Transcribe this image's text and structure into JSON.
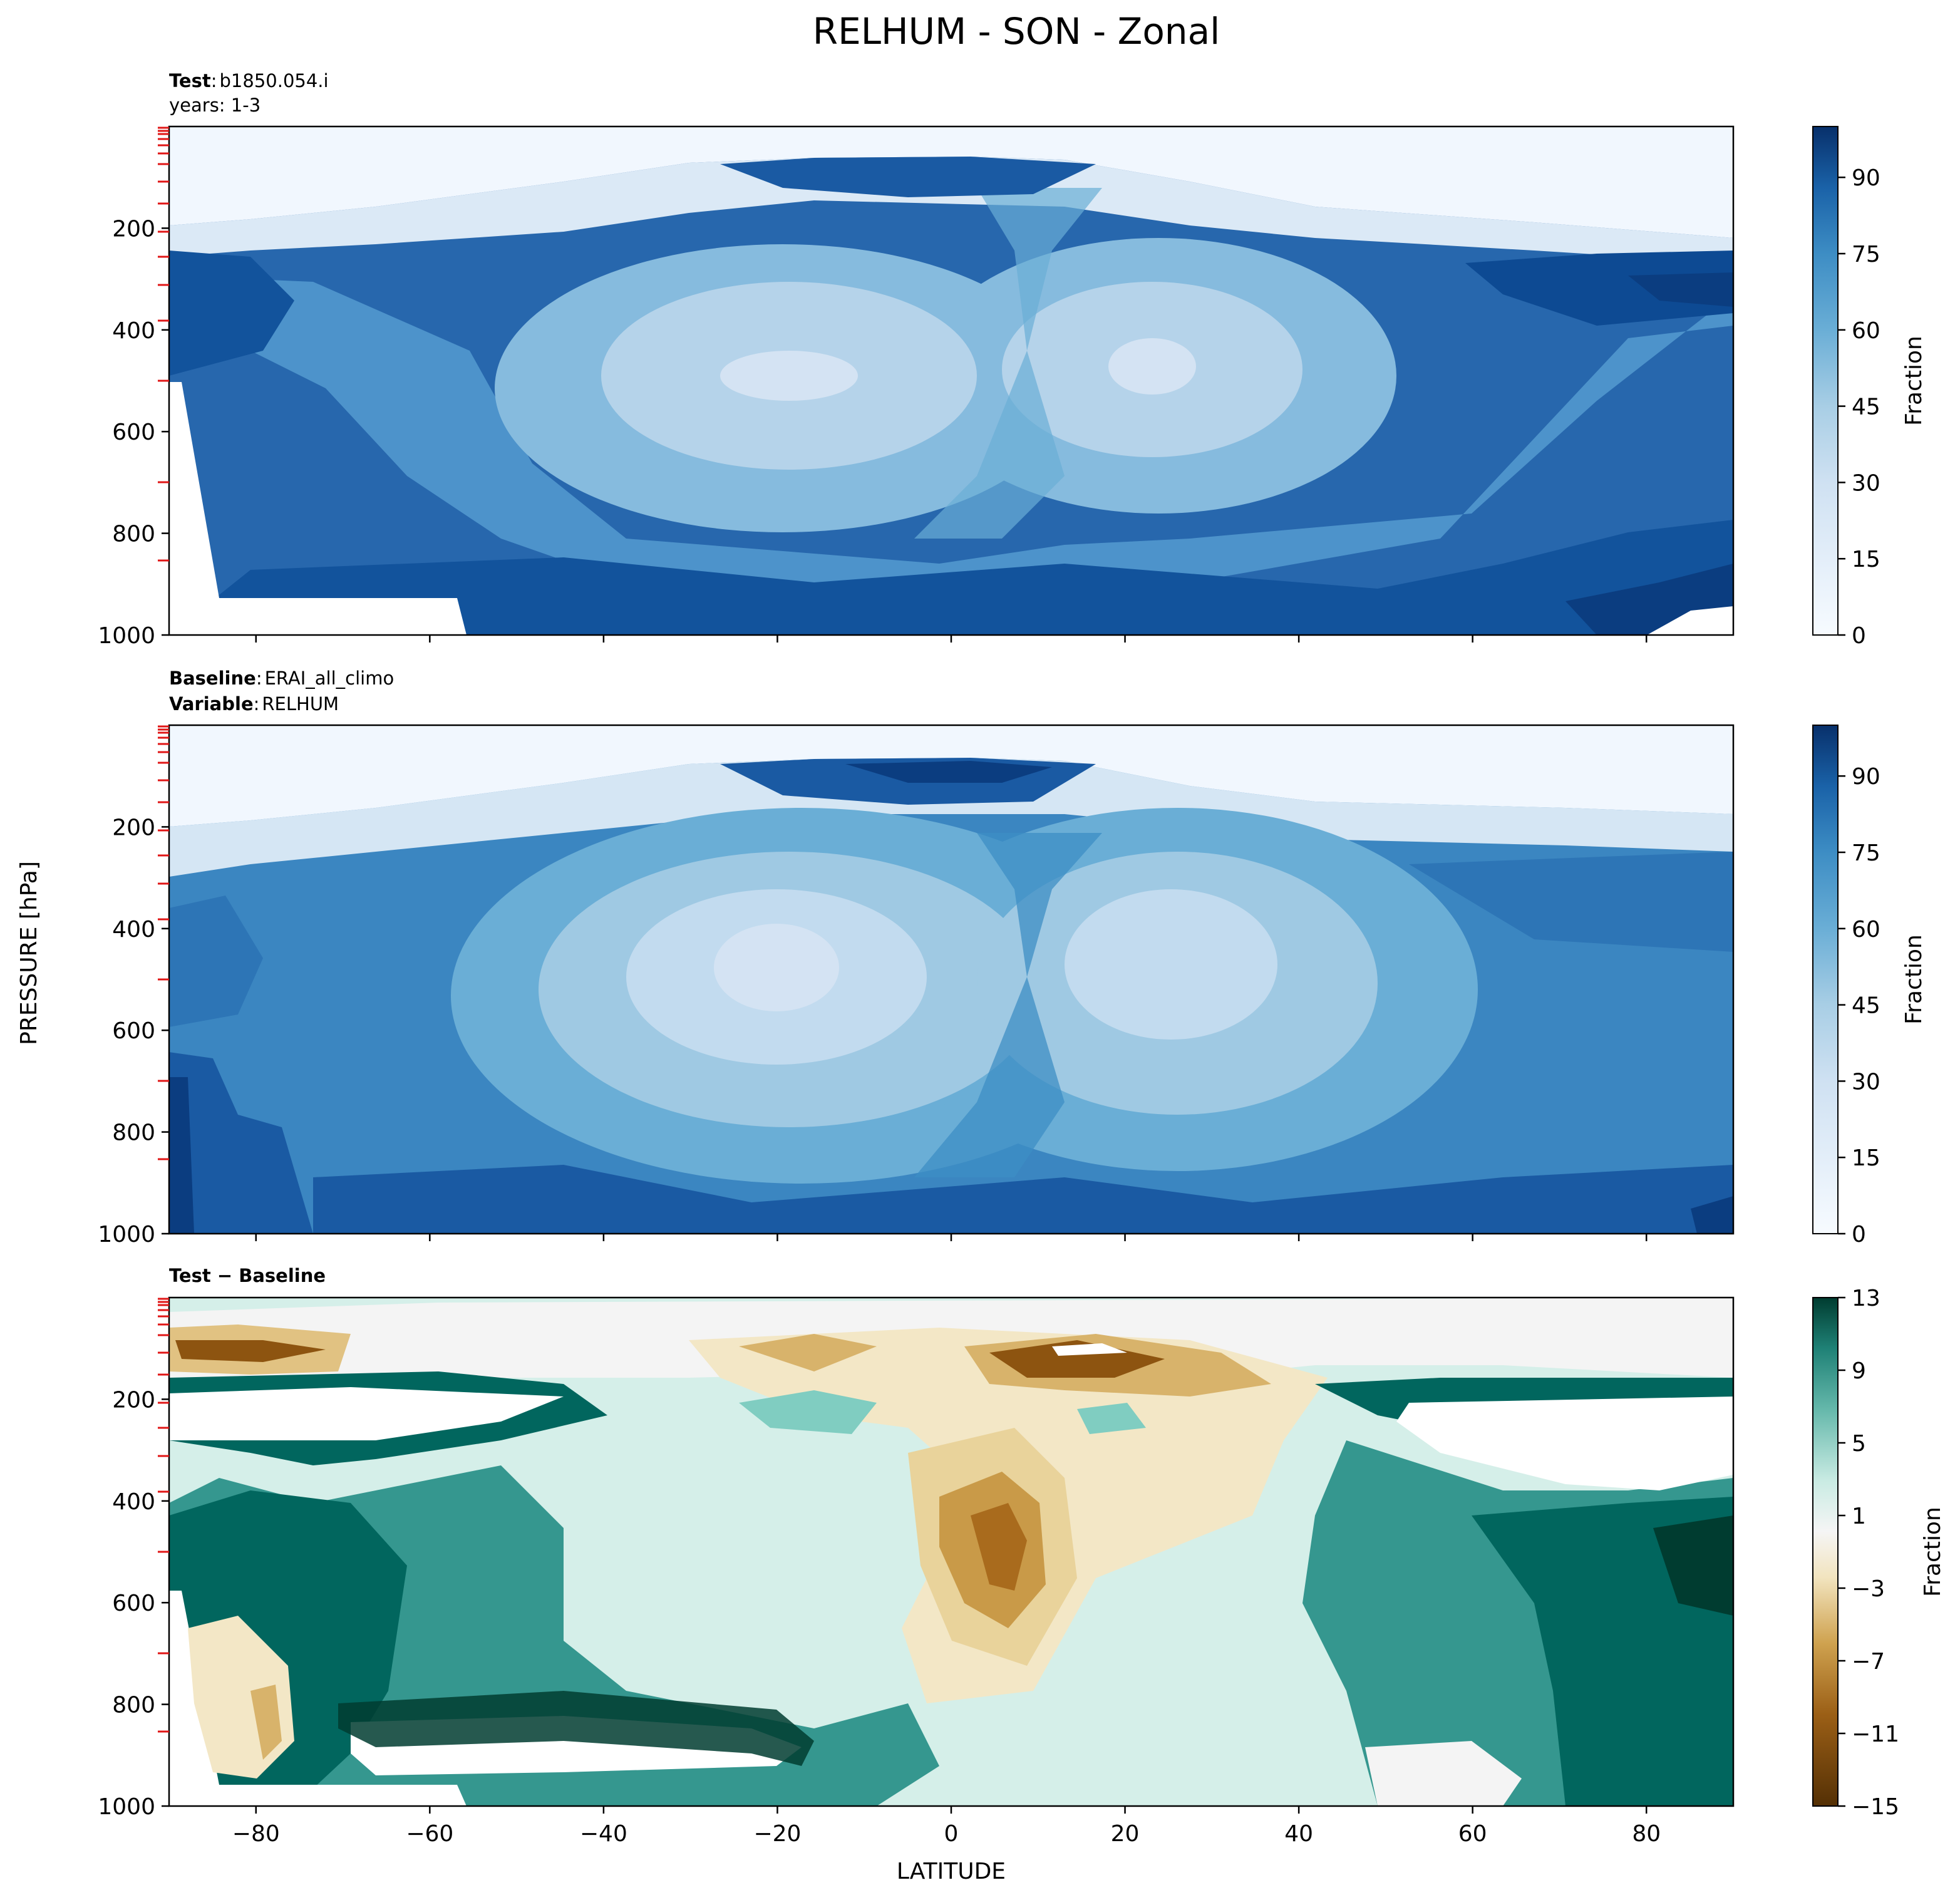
{
  "figure": {
    "title": "RELHUM - SON - Zonal",
    "xlabel": "LATITUDE",
    "ylabel": "PRESSURE [hPa]"
  },
  "panels": [
    {
      "header_lines": [
        {
          "bold": "Test",
          "sep": ":",
          "text": "b1850.054.i"
        },
        {
          "bold": "",
          "sep": "",
          "text": "years: 1-3"
        }
      ],
      "colorbar_label": "Fraction"
    },
    {
      "header_lines": [
        {
          "bold": "Baseline",
          "sep": ":",
          "text": "ERAI_all_climo"
        },
        {
          "bold": "Variable",
          "sep": ":",
          "text": "RELHUM"
        }
      ],
      "colorbar_label": "Fraction"
    },
    {
      "header_lines": [
        {
          "bold": "Test − Baseline",
          "sep": "",
          "text": ""
        }
      ],
      "colorbar_label": "Fraction"
    }
  ],
  "chart_data": [
    {
      "type": "heatmap",
      "subtype": "filled-contour",
      "panel": "Test",
      "case": "b1850.054.i",
      "years": "1-3",
      "x_range": [
        -90,
        90
      ],
      "x_ticks": [
        -80,
        -60,
        -40,
        -20,
        0,
        20,
        40,
        60,
        80
      ],
      "y_range": [
        1000,
        0
      ],
      "y_ticks": [
        200,
        400,
        600,
        800,
        1000
      ],
      "colormap": "Blues",
      "levels": [
        0,
        100
      ],
      "colorbar_ticks": [
        0,
        15,
        30,
        45,
        60,
        75,
        90
      ],
      "colorbar_label": "Fraction",
      "description_values": {
        "stratosphere_above_200hPa": 3,
        "tropical_tropopause_100hPa_max": 92,
        "subtropical_minima_500hPa": 22,
        "high_latitude_upper_max": 95,
        "boundary_layer_max": 90
      }
    },
    {
      "type": "heatmap",
      "subtype": "filled-contour",
      "panel": "Baseline",
      "case": "ERAI_all_climo",
      "variable": "RELHUM",
      "x_range": [
        -90,
        90
      ],
      "x_ticks": [
        -80,
        -60,
        -40,
        -20,
        0,
        20,
        40,
        60,
        80
      ],
      "y_range": [
        1000,
        0
      ],
      "y_ticks": [
        200,
        400,
        600,
        800,
        1000
      ],
      "colormap": "Blues",
      "levels": [
        0,
        100
      ],
      "colorbar_ticks": [
        0,
        15,
        30,
        45,
        60,
        75,
        90
      ],
      "colorbar_label": "Fraction",
      "description_values": {
        "stratosphere_above_200hPa": 3,
        "tropical_tropopause_100hPa_max": 95,
        "subtropical_minima_500hPa": 18,
        "boundary_layer_max": 88
      }
    },
    {
      "type": "heatmap",
      "subtype": "filled-contour",
      "panel": "Test − Baseline",
      "x_range": [
        -90,
        90
      ],
      "x_ticks": [
        -80,
        -60,
        -40,
        -20,
        0,
        20,
        40,
        60,
        80
      ],
      "y_range": [
        1000,
        0
      ],
      "y_ticks": [
        200,
        400,
        600,
        800,
        1000
      ],
      "colormap": "BrBG",
      "levels": [
        -15,
        13
      ],
      "colorbar_ticks": [
        -15,
        -11,
        -7,
        -3,
        1,
        5,
        9,
        13
      ],
      "colorbar_label": "Fraction",
      "description_values": {
        "southern_high_lat_mid_troposphere": 12,
        "tropical_upper_troposphere_400hPa": -9,
        "tropical_tropopause_110hPa": -14,
        "northern_high_lat_500hPa": 12
      }
    }
  ]
}
